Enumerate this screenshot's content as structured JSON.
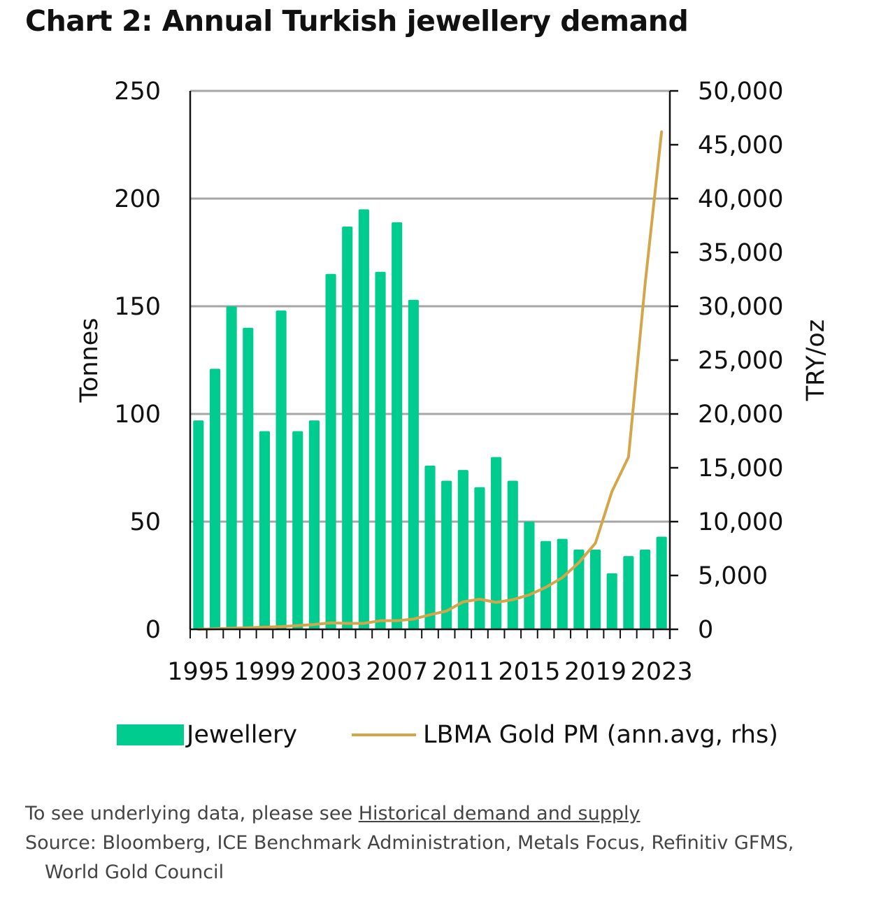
{
  "title": "Chart 2: Annual Turkish jewellery demand",
  "legend": {
    "bar_label": "Jewellery",
    "line_label": "LBMA Gold PM (ann.avg, rhs)"
  },
  "footer": {
    "prefix": "To see underlying data, please see ",
    "link": "Historical demand and supply",
    "source_line1": "Source: Bloomberg, ICE Benchmark Administration, Metals Focus, Refinitiv GFMS,",
    "source_line2": "World Gold Council"
  },
  "colors": {
    "bar": "#00cc8f",
    "line": "#d4a64a",
    "grid": "#a6a6a6",
    "axis": "#111111"
  },
  "chart_data": {
    "type": "bar",
    "title": "Chart 2: Annual Turkish jewellery demand",
    "xlabel": "",
    "ylabel": "Tonnes",
    "y2label": "TRY/oz",
    "ylim": [
      0,
      250
    ],
    "y2lim": [
      0,
      50000
    ],
    "yticks": [
      0,
      50,
      100,
      150,
      200,
      250
    ],
    "y2ticks": [
      "0",
      "5,000",
      "10,000",
      "15,000",
      "20,000",
      "25,000",
      "30,000",
      "35,000",
      "40,000",
      "45,000",
      "50,000"
    ],
    "y2tick_values": [
      0,
      5000,
      10000,
      15000,
      20000,
      25000,
      30000,
      35000,
      40000,
      45000,
      50000
    ],
    "xtick_labels": [
      "1995",
      "1999",
      "2003",
      "2007",
      "2011",
      "2015",
      "2019",
      "2023"
    ],
    "grid": true,
    "legend_position": "bottom",
    "categories": [
      "1995",
      "1996",
      "1997",
      "1998",
      "1999",
      "2000",
      "2001",
      "2002",
      "2003",
      "2004",
      "2005",
      "2006",
      "2007",
      "2008",
      "2009",
      "2010",
      "2011",
      "2012",
      "2013",
      "2014",
      "2015",
      "2016",
      "2017",
      "2018",
      "2019",
      "2020",
      "2021",
      "2022",
      "2023"
    ],
    "series": [
      {
        "name": "Jewellery",
        "type": "bar",
        "axis": "left",
        "values": [
          97,
          121,
          150,
          140,
          92,
          148,
          92,
          97,
          165,
          187,
          195,
          166,
          189,
          153,
          76,
          69,
          74,
          66,
          80,
          69,
          50,
          41,
          42,
          37,
          37,
          26,
          34,
          37,
          43
        ]
      },
      {
        "name": "LBMA Gold PM (ann.avg, rhs)",
        "type": "line",
        "axis": "right",
        "values": [
          0,
          50,
          100,
          150,
          200,
          250,
          350,
          450,
          600,
          550,
          550,
          800,
          800,
          950,
          1350,
          1700,
          2550,
          2800,
          2500,
          2750,
          3200,
          3900,
          4800,
          6200,
          8000,
          12800,
          16000,
          32000,
          46200
        ]
      }
    ]
  }
}
